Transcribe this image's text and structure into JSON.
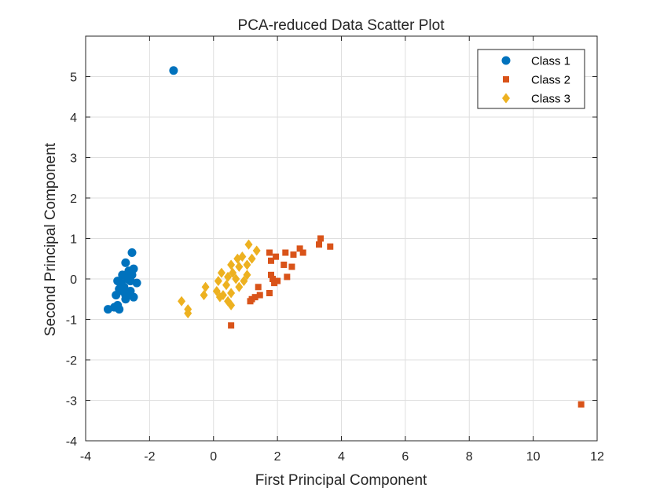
{
  "chart_data": {
    "type": "scatter",
    "title": "PCA-reduced Data Scatter Plot",
    "xlabel": "First Principal Component",
    "ylabel": "Second Principal Component",
    "xlim": [
      -4,
      12
    ],
    "ylim": [
      -4,
      6
    ],
    "xticks": [
      -4,
      -2,
      0,
      2,
      4,
      6,
      8,
      10,
      12
    ],
    "yticks": [
      -4,
      -3,
      -2,
      -1,
      0,
      1,
      2,
      3,
      4,
      5
    ],
    "grid": true,
    "legend_position": "top-right",
    "series": [
      {
        "name": "Class 1",
        "marker": "circle",
        "color": "#0072BD",
        "points": [
          [
            -1.25,
            5.15
          ],
          [
            -2.55,
            0.65
          ],
          [
            -2.75,
            0.4
          ],
          [
            -2.5,
            0.25
          ],
          [
            -2.65,
            0.2
          ],
          [
            -2.85,
            0.1
          ],
          [
            -2.7,
            0.05
          ],
          [
            -3.0,
            -0.05
          ],
          [
            -2.9,
            -0.1
          ],
          [
            -2.6,
            -0.05
          ],
          [
            -2.4,
            -0.1
          ],
          [
            -2.8,
            -0.2
          ],
          [
            -2.95,
            -0.25
          ],
          [
            -2.6,
            -0.3
          ],
          [
            -3.05,
            -0.4
          ],
          [
            -2.75,
            -0.4
          ],
          [
            -2.5,
            -0.45
          ],
          [
            -2.75,
            -0.5
          ],
          [
            -3.0,
            -0.65
          ],
          [
            -3.1,
            -0.7
          ],
          [
            -2.95,
            -0.75
          ],
          [
            -3.3,
            -0.75
          ],
          [
            -2.7,
            0.0
          ],
          [
            -2.55,
            0.1
          ],
          [
            -2.85,
            -0.3
          ]
        ]
      },
      {
        "name": "Class 2",
        "marker": "square",
        "color": "#D95319",
        "points": [
          [
            11.5,
            -3.1
          ],
          [
            3.35,
            1.0
          ],
          [
            3.3,
            0.85
          ],
          [
            3.65,
            0.8
          ],
          [
            2.7,
            0.75
          ],
          [
            2.8,
            0.65
          ],
          [
            2.5,
            0.6
          ],
          [
            2.25,
            0.65
          ],
          [
            1.75,
            0.65
          ],
          [
            1.95,
            0.55
          ],
          [
            1.8,
            0.45
          ],
          [
            2.2,
            0.35
          ],
          [
            2.45,
            0.3
          ],
          [
            1.8,
            0.1
          ],
          [
            2.3,
            0.05
          ],
          [
            1.85,
            0.0
          ],
          [
            2.0,
            -0.05
          ],
          [
            1.9,
            -0.1
          ],
          [
            1.4,
            -0.2
          ],
          [
            1.75,
            -0.35
          ],
          [
            1.45,
            -0.4
          ],
          [
            1.2,
            -0.5
          ],
          [
            1.15,
            -0.55
          ],
          [
            0.55,
            -1.15
          ],
          [
            1.3,
            -0.45
          ]
        ]
      },
      {
        "name": "Class 3",
        "marker": "diamond",
        "color": "#EDB120",
        "points": [
          [
            1.1,
            0.85
          ],
          [
            1.35,
            0.7
          ],
          [
            0.9,
            0.55
          ],
          [
            1.2,
            0.5
          ],
          [
            0.75,
            0.5
          ],
          [
            0.55,
            0.35
          ],
          [
            1.05,
            0.35
          ],
          [
            0.8,
            0.3
          ],
          [
            0.25,
            0.15
          ],
          [
            0.6,
            0.15
          ],
          [
            1.05,
            0.1
          ],
          [
            0.45,
            0.05
          ],
          [
            0.7,
            0.0
          ],
          [
            0.15,
            -0.05
          ],
          [
            0.95,
            -0.05
          ],
          [
            0.4,
            -0.15
          ],
          [
            0.8,
            -0.2
          ],
          [
            -0.25,
            -0.2
          ],
          [
            0.1,
            -0.3
          ],
          [
            0.55,
            -0.35
          ],
          [
            -0.3,
            -0.4
          ],
          [
            0.2,
            -0.45
          ],
          [
            0.45,
            -0.55
          ],
          [
            -1.0,
            -0.55
          ],
          [
            0.55,
            -0.65
          ],
          [
            -0.8,
            -0.75
          ],
          [
            -0.8,
            -0.85
          ],
          [
            0.3,
            -0.4
          ]
        ]
      }
    ]
  }
}
